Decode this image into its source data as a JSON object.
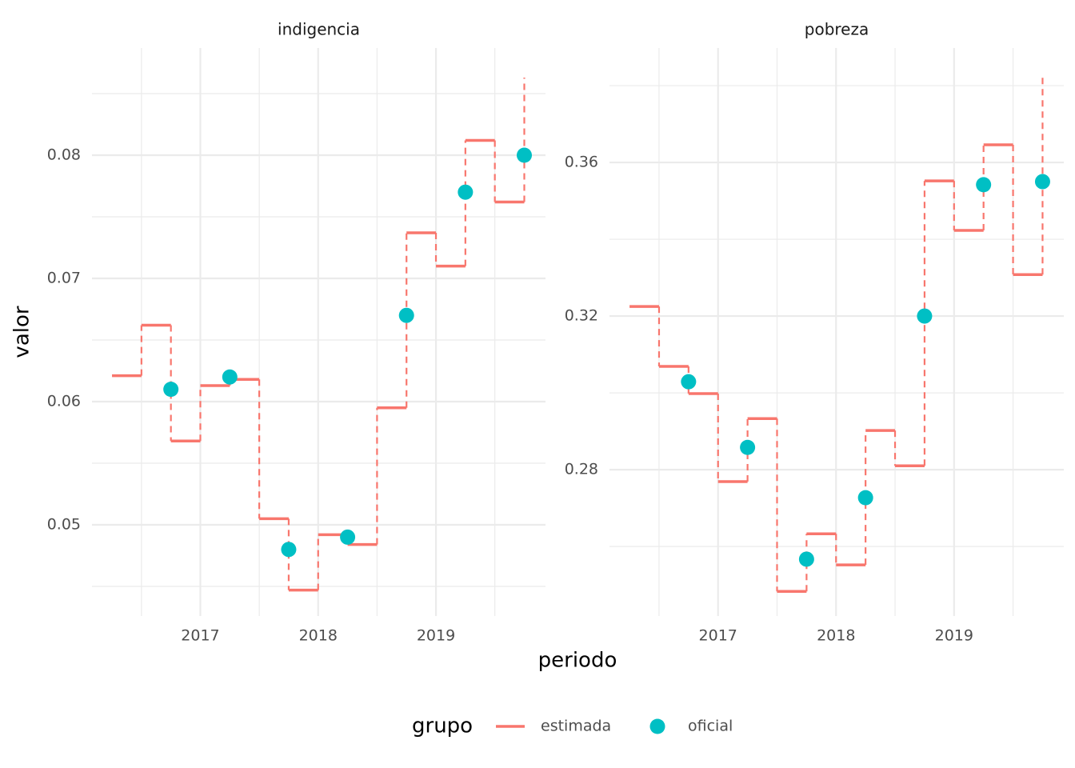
{
  "chart_data": {
    "type": "step",
    "xlabel": "periodo",
    "ylabel": "valor",
    "legend_title": "grupo",
    "legend_position": "bottom",
    "grid": true,
    "legend": [
      {
        "name": "estimada",
        "color": "#f8766d"
      },
      {
        "name": "oficial",
        "color": "#00bfc4"
      }
    ],
    "facets": [
      {
        "title": "indigencia",
        "xlim": [
          2016.08,
          2019.93
        ],
        "xticks": [
          2017,
          2018,
          2019
        ],
        "x_minor_ticks": [
          2016.5,
          2017.5,
          2018.5,
          2019.5
        ],
        "ylim": [
          0.0426,
          0.0887
        ],
        "yticks": [
          0.05,
          0.06,
          0.07,
          0.08
        ],
        "y_minor_ticks": [
          0.045,
          0.055,
          0.065,
          0.075,
          0.085
        ],
        "series": [
          {
            "x": [
              2016.25,
              2016.5,
              2016.75,
              2017.0,
              2017.25,
              2017.5,
              2017.75,
              2018.0,
              2018.25,
              2018.5,
              2018.75,
              2019.0,
              2019.25,
              2019.5,
              2019.75
            ],
            "values": [
              0.0621,
              0.0662,
              0.0568,
              0.0613,
              0.0618,
              0.0505,
              0.0447,
              0.0492,
              0.0484,
              0.0595,
              0.0737,
              0.071,
              0.0812,
              0.0762,
              0.0863
            ]
          },
          {
            "x": [
              2016.75,
              2017.25,
              2017.75,
              2018.25,
              2018.75,
              2019.25,
              2019.75
            ],
            "values": [
              0.061,
              0.062,
              0.048,
              0.049,
              0.067,
              0.077,
              0.08
            ]
          }
        ]
      },
      {
        "title": "pobreza",
        "xlim": [
          2016.08,
          2019.93
        ],
        "xticks": [
          2017,
          2018,
          2019
        ],
        "x_minor_ticks": [
          2016.5,
          2017.5,
          2018.5,
          2019.5
        ],
        "ylim": [
          0.2419,
          0.3898
        ],
        "yticks": [
          0.28,
          0.32,
          0.36
        ],
        "y_minor_ticks": [
          0.26,
          0.3,
          0.34,
          0.38
        ],
        "series": [
          {
            "x": [
              2016.25,
              2016.5,
              2016.75,
              2017.0,
              2017.25,
              2017.5,
              2017.75,
              2018.0,
              2018.25,
              2018.5,
              2018.75,
              2019.0,
              2019.25,
              2019.5,
              2019.75
            ],
            "values": [
              0.3225,
              0.3069,
              0.2998,
              0.2769,
              0.2933,
              0.2483,
              0.2633,
              0.2552,
              0.2902,
              0.281,
              0.3552,
              0.3423,
              0.3646,
              0.3308,
              0.3831
            ]
          },
          {
            "x": [
              2016.75,
              2017.25,
              2017.75,
              2018.25,
              2018.75,
              2019.25,
              2019.75
            ],
            "values": [
              0.3029,
              0.2858,
              0.2567,
              0.2727,
              0.32,
              0.3542,
              0.355
            ]
          }
        ]
      }
    ]
  }
}
